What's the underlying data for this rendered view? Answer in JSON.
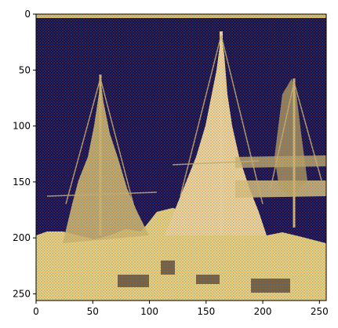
{
  "chart_data": {
    "type": "heatmap",
    "image_description": "Pseudo-colored image of sailing ships (tall masts and rigging) with a dark navy blue sky and a bright yellow hull/water region; fine checkerboard texture overlaid",
    "xlim": [
      0,
      256
    ],
    "ylim": [
      256,
      0
    ],
    "x_ticks": [
      0,
      50,
      100,
      150,
      200,
      250
    ],
    "y_ticks": [
      0,
      50,
      100,
      150,
      200,
      250
    ],
    "x_tick_labels": [
      "0",
      "50",
      "100",
      "150",
      "200",
      "250"
    ],
    "y_tick_labels": [
      "0",
      "50",
      "100",
      "150",
      "200",
      "250"
    ],
    "grid": false,
    "colors": {
      "sky": "#0b0f4a",
      "sky_dark": "#05082a",
      "ship_yellow": "#e6e07a",
      "ship_light": "#f2e6a0",
      "ship_shadow": "#6b6a3a",
      "checker_red": "#b04a3a",
      "checker_blue": "#2a3fa0"
    }
  }
}
